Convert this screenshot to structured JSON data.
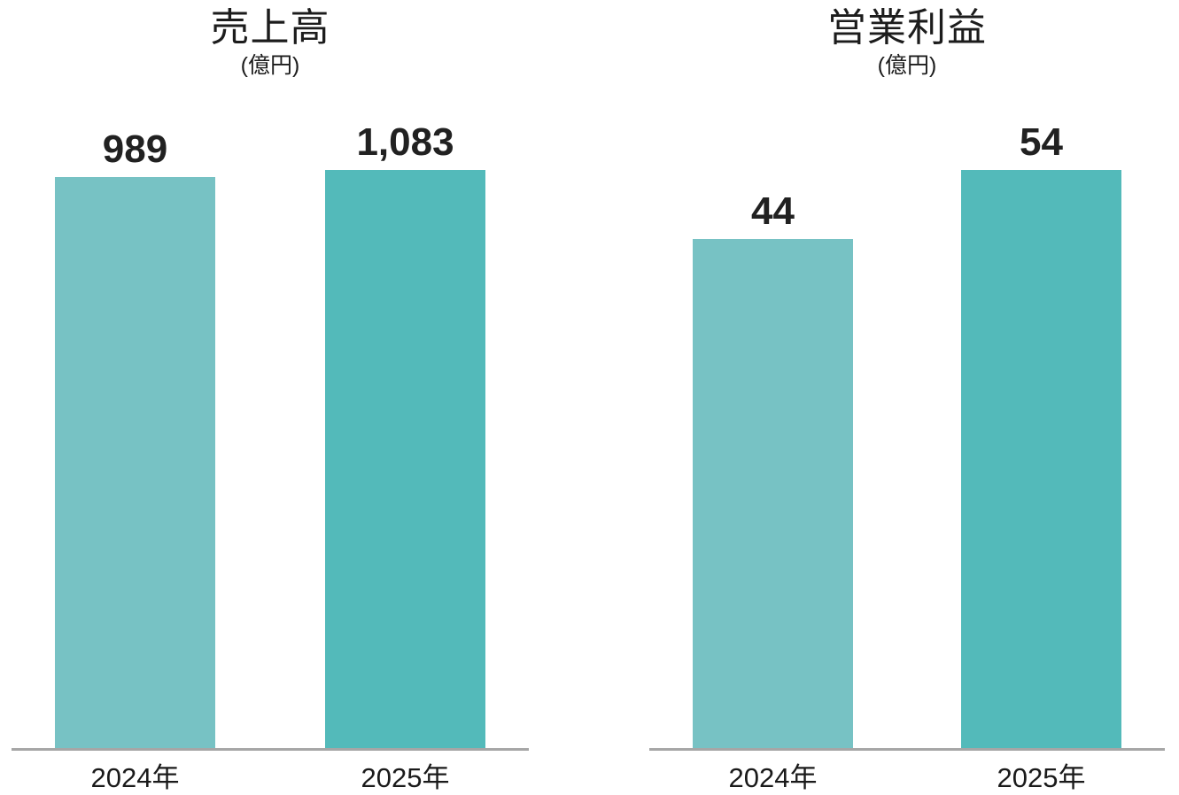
{
  "page": {
    "background": "#ffffff",
    "text_color": "#1c1c1c",
    "baseline_color": "#a6a6a6"
  },
  "chart_data": [
    {
      "type": "bar",
      "title": "売上高",
      "unit_label": "(億円)",
      "categories": [
        "2024年",
        "2025年"
      ],
      "values": [
        989,
        1083
      ],
      "value_labels": [
        "989",
        "1,083"
      ],
      "bar_colors": [
        "#77C2C4",
        "#53BABA"
      ],
      "ylim": [
        0,
        1083
      ],
      "grid": false,
      "legend": false,
      "y_axis_visible": false,
      "baseline_color": "#a6a6a6"
    },
    {
      "type": "bar",
      "title": "営業利益",
      "unit_label": "(億円)",
      "categories": [
        "2024年",
        "2025年"
      ],
      "values": [
        44,
        54
      ],
      "value_labels": [
        "44",
        "54"
      ],
      "bar_colors": [
        "#77C2C4",
        "#53BABA"
      ],
      "ylim": [
        0,
        54
      ],
      "grid": false,
      "legend": false,
      "y_axis_visible": false,
      "baseline_color": "#a6a6a6"
    }
  ]
}
